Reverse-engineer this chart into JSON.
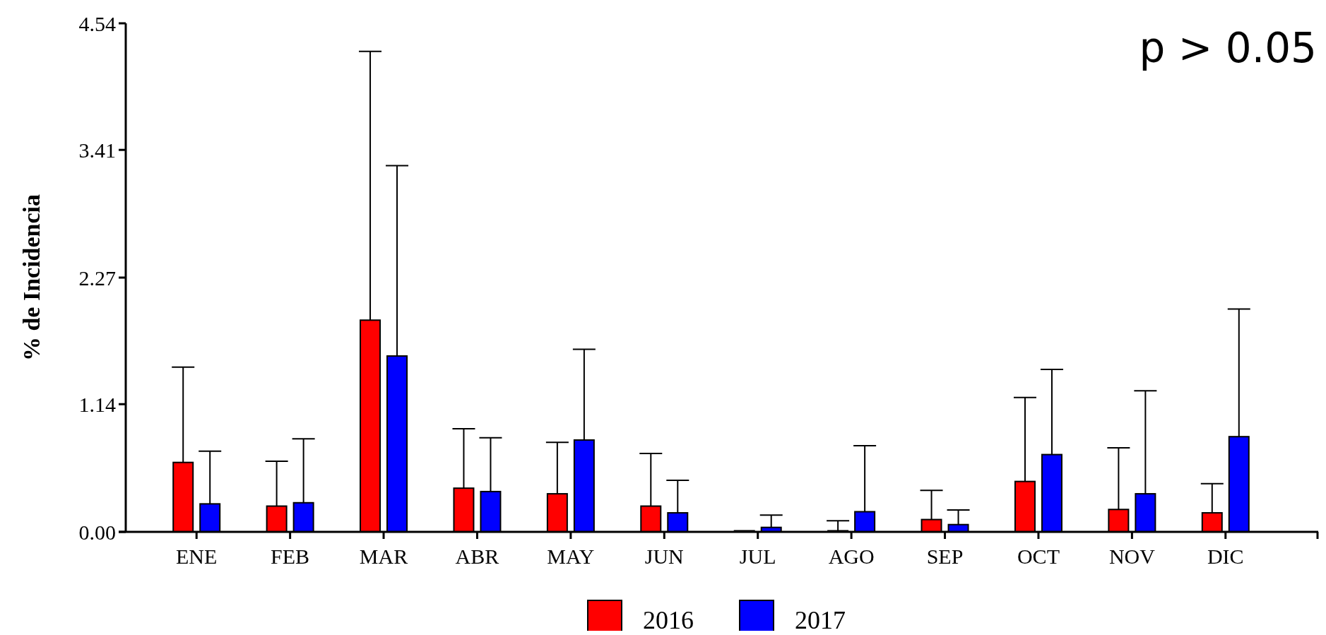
{
  "chart_data": {
    "type": "bar",
    "ylabel": "% de Incidencia",
    "annotations": [
      "p > 0.05"
    ],
    "categories": [
      "ENE",
      "FEB",
      "MAR",
      "ABR",
      "MAY",
      "JUN",
      "JUL",
      "AGO",
      "SEP",
      "OCT",
      "NOV",
      "DIC"
    ],
    "series": [
      {
        "name": "2016",
        "color": "#ff0000",
        "values": [
          0.62,
          0.23,
          1.89,
          0.39,
          0.34,
          0.23,
          0.01,
          0.01,
          0.11,
          0.45,
          0.2,
          0.17
        ],
        "errors": [
          0.85,
          0.4,
          2.4,
          0.53,
          0.46,
          0.47,
          null,
          0.09,
          0.26,
          0.75,
          0.55,
          0.26
        ]
      },
      {
        "name": "2017",
        "color": "#0000ff",
        "values": [
          0.25,
          0.26,
          1.57,
          0.36,
          0.82,
          0.17,
          0.04,
          0.18,
          0.065,
          0.69,
          0.34,
          0.85
        ],
        "errors": [
          0.47,
          0.57,
          1.7,
          0.48,
          0.81,
          0.29,
          0.11,
          0.59,
          0.13,
          0.76,
          0.92,
          1.14
        ]
      }
    ],
    "ylim": [
      0,
      4.54
    ],
    "yticks": [
      {
        "value": 0,
        "label": "0.00"
      },
      1.14,
      2.27,
      3.41,
      4.54
    ],
    "legend": "bottom",
    "grid": false
  }
}
